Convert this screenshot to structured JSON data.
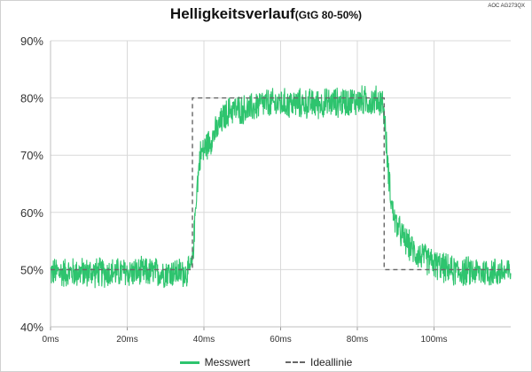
{
  "header": {
    "title": "Helligkeitsverlauf",
    "subtitle": "(GtG 80-50%)",
    "brand": "AOC AG273QX"
  },
  "legend": {
    "measured": "Messwert",
    "ideal": "Ideallinie"
  },
  "colors": {
    "measured": "#2ec46e",
    "ideal": "#666666",
    "grid": "#d9d9d9"
  },
  "chart_data": {
    "type": "line",
    "title": "Helligkeitsverlauf (GtG 80-50%)",
    "xlim": [
      0,
      120
    ],
    "ylim": [
      40,
      90
    ],
    "x_ticks": [
      "0ms",
      "20ms",
      "40ms",
      "60ms",
      "80ms",
      "100ms"
    ],
    "y_ticks": [
      "40%",
      "50%",
      "60%",
      "70%",
      "80%",
      "90%"
    ],
    "grid": true,
    "legend_position": "bottom",
    "series": [
      {
        "name": "Messwert",
        "noise_band": 3,
        "points": [
          [
            0,
            49.5
          ],
          [
            36,
            49.5
          ],
          [
            37,
            51
          ],
          [
            38,
            63
          ],
          [
            39,
            70
          ],
          [
            42,
            73
          ],
          [
            44,
            75
          ],
          [
            45,
            76.5
          ],
          [
            47,
            78
          ],
          [
            52,
            78
          ],
          [
            55,
            79
          ],
          [
            70,
            79
          ],
          [
            80,
            79.5
          ],
          [
            86.5,
            79.5
          ],
          [
            87,
            77
          ],
          [
            88,
            68
          ],
          [
            89,
            61
          ],
          [
            90,
            58
          ],
          [
            92,
            55.5
          ],
          [
            95,
            53
          ],
          [
            100,
            51
          ],
          [
            105,
            49.7
          ],
          [
            120,
            49.5
          ]
        ]
      },
      {
        "name": "Ideallinie",
        "points": [
          [
            0,
            50
          ],
          [
            37,
            50
          ],
          [
            37,
            80
          ],
          [
            87,
            80
          ],
          [
            87,
            50
          ],
          [
            120,
            50
          ]
        ]
      }
    ]
  }
}
